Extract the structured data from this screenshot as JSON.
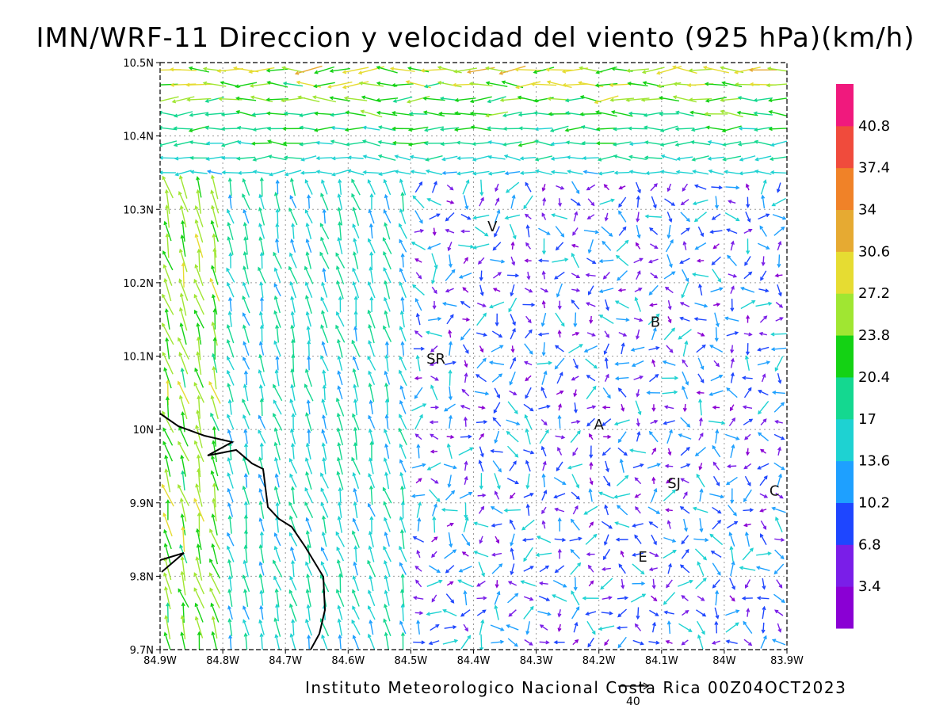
{
  "title": "IMN/WRF-11 Direccion y velocidad del viento (925 hPa)(km/h)",
  "footer": "Instituto Meteorologico Nacional Costa Rica 00Z04OCT2023",
  "reference_vector": {
    "label": "40"
  },
  "map": {
    "lon_ticks": [
      "84.9W",
      "84.8W",
      "84.7W",
      "84.6W",
      "84.5W",
      "84.4W",
      "84.3W",
      "84.2W",
      "84.1W",
      "84W",
      "83.9W"
    ],
    "lat_ticks": [
      "10.5N",
      "10.4N",
      "10.3N",
      "10.2N",
      "10.1N",
      "10N",
      "9.9N",
      "9.8N",
      "9.7N"
    ],
    "lon_range": [
      -84.9,
      -83.9
    ],
    "lat_range": [
      9.7,
      10.5
    ],
    "grid": "dotted",
    "sites": [
      {
        "label": "V",
        "lon": -84.37,
        "lat": 10.27
      },
      {
        "label": "B",
        "lon": -84.11,
        "lat": 10.14
      },
      {
        "label": "SR",
        "lon": -84.46,
        "lat": 10.09
      },
      {
        "label": "A",
        "lon": -84.2,
        "lat": 10.0
      },
      {
        "label": "SJ",
        "lon": -84.08,
        "lat": 9.92
      },
      {
        "label": "C",
        "lon": -83.92,
        "lat": 9.91
      },
      {
        "label": "E",
        "lon": -84.13,
        "lat": 9.82
      }
    ]
  },
  "colorbar": {
    "labels": [
      "40.8",
      "37.4",
      "34",
      "30.6",
      "27.2",
      "23.8",
      "20.4",
      "17",
      "13.6",
      "10.2",
      "6.8",
      "3.4"
    ],
    "colors": [
      "#8a00d4",
      "#7a1ee8",
      "#1e46ff",
      "#1ea0ff",
      "#1ed2d2",
      "#14d890",
      "#14d214",
      "#a0e632",
      "#e6dc32",
      "#e6aa32",
      "#f08228",
      "#f04b3c",
      "#f0197d"
    ]
  }
}
